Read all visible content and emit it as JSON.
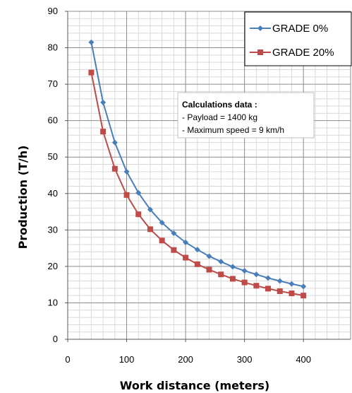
{
  "chart_data": {
    "type": "line",
    "title": "",
    "xlabel": "Work distance (meters)",
    "ylabel": "Production (T/h)",
    "xlim": [
      0,
      480
    ],
    "ylim": [
      0,
      90
    ],
    "x_ticks": [
      0,
      100,
      200,
      300,
      400
    ],
    "y_ticks": [
      0,
      10,
      20,
      30,
      40,
      50,
      60,
      70,
      80,
      90
    ],
    "grid": "on",
    "legend_position": "top-right",
    "x": [
      40,
      60,
      80,
      100,
      120,
      140,
      160,
      180,
      200,
      220,
      240,
      260,
      280,
      300,
      320,
      340,
      360,
      380,
      400
    ],
    "series": [
      {
        "name": "GRADE 0%",
        "color": "#4a7ebb",
        "marker": "diamond",
        "values": [
          81.5,
          65.0,
          54.0,
          46.0,
          40.2,
          35.6,
          32.0,
          29.1,
          26.6,
          24.6,
          22.8,
          21.3,
          19.9,
          18.8,
          17.8,
          16.8,
          16.0,
          15.2,
          14.5
        ]
      },
      {
        "name": "GRADE 20%",
        "color": "#be4b48",
        "marker": "square",
        "values": [
          73.2,
          57.0,
          46.8,
          39.6,
          34.3,
          30.2,
          27.1,
          24.5,
          22.4,
          20.6,
          19.1,
          17.8,
          16.6,
          15.6,
          14.7,
          13.9,
          13.2,
          12.6,
          12.0
        ]
      }
    ],
    "annotations": {
      "title": "Calculations data :",
      "lines": [
        "- Payload = 1400 kg",
        "- Maximum speed = 9 km/h"
      ]
    }
  }
}
